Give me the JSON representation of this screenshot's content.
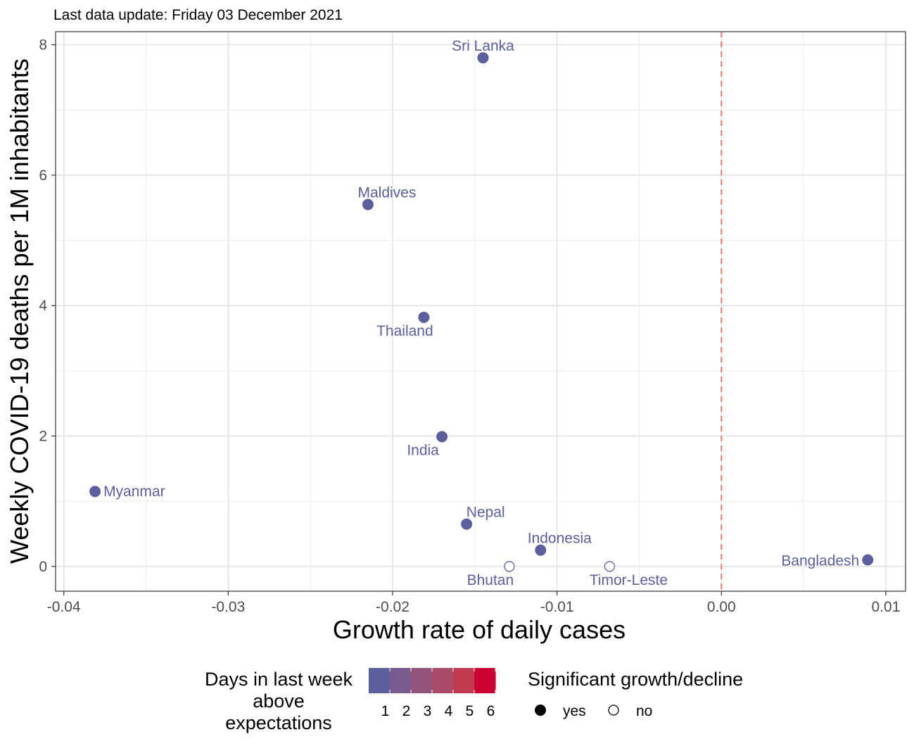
{
  "chart_data": {
    "type": "scatter",
    "subtitle": "Last data update: Friday 03 December 2021",
    "xlabel": "Growth rate of daily cases",
    "ylabel": "Weekly COVID-19 deaths per 1M inhabitants",
    "xlim": [
      -0.0405,
      0.0112
    ],
    "ylim": [
      -0.38,
      8.2
    ],
    "grid": true,
    "x_ticks": [
      {
        "value": -0.04,
        "label": "-0.04"
      },
      {
        "value": -0.03,
        "label": "-0.03"
      },
      {
        "value": -0.02,
        "label": "-0.02"
      },
      {
        "value": -0.01,
        "label": "-0.01"
      },
      {
        "value": 0.0,
        "label": "0.00"
      },
      {
        "value": 0.01,
        "label": "0.01"
      }
    ],
    "y_ticks": [
      {
        "value": 0,
        "label": "0"
      },
      {
        "value": 2,
        "label": "2"
      },
      {
        "value": 4,
        "label": "4"
      },
      {
        "value": 6,
        "label": "6"
      },
      {
        "value": 8,
        "label": "8"
      }
    ],
    "reference_line": {
      "x": 0.0,
      "color": "#e8756a",
      "style": "dashed"
    },
    "points": [
      {
        "label": "Sri Lanka",
        "x": -0.0145,
        "y": 7.8,
        "significant": true,
        "label_pos": "top"
      },
      {
        "label": "Maldives",
        "x": -0.0215,
        "y": 5.55,
        "significant": true,
        "label_pos": "top-right"
      },
      {
        "label": "Thailand",
        "x": -0.0181,
        "y": 3.82,
        "significant": true,
        "label_pos": "bottom-left"
      },
      {
        "label": "India",
        "x": -0.017,
        "y": 1.99,
        "significant": true,
        "label_pos": "bottom-left"
      },
      {
        "label": "Myanmar",
        "x": -0.0381,
        "y": 1.15,
        "significant": true,
        "label_pos": "right"
      },
      {
        "label": "Nepal",
        "x": -0.0155,
        "y": 0.65,
        "significant": true,
        "label_pos": "top-right"
      },
      {
        "label": "Indonesia",
        "x": -0.011,
        "y": 0.25,
        "significant": true,
        "label_pos": "top-right"
      },
      {
        "label": "Bhutan",
        "x": -0.0129,
        "y": 0.0,
        "significant": false,
        "label_pos": "bottom-left"
      },
      {
        "label": "Timor-Leste",
        "x": -0.0068,
        "y": 0.0,
        "significant": false,
        "label_pos": "bottom-right"
      },
      {
        "label": "Bangladesh",
        "x": 0.0089,
        "y": 0.1,
        "significant": true,
        "label_pos": "left"
      }
    ],
    "point_color": "#5b5f9e",
    "label_color": "#5b5f9e",
    "legend": {
      "placement": "bottom",
      "color_title": "Days in last week\nabove\nexpectations",
      "color_scale": {
        "labels": [
          "1",
          "2",
          "3",
          "4",
          "5",
          "6"
        ],
        "colors": [
          "#5b5f9e",
          "#785a8c",
          "#92547a",
          "#a94a66",
          "#bf3b50",
          "#cc0033"
        ]
      },
      "shape_title": "Significant growth/decline",
      "shape_items": [
        {
          "label": "yes",
          "filled": true
        },
        {
          "label": "no",
          "filled": false
        }
      ]
    }
  }
}
